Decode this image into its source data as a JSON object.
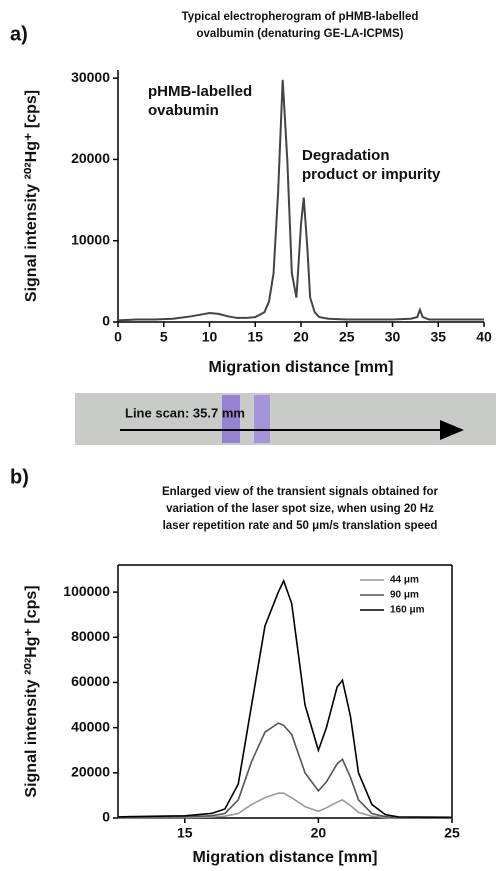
{
  "chart_data": [
    {
      "type": "line",
      "panel": "a)",
      "title": [
        "Typical electropherogram of pHMB-labelled",
        "ovalbumin (denaturing GE-LA-ICPMS)"
      ],
      "xlabel": "Migration distance [mm]",
      "ylabel": "Signal intensity ²⁰²Hg⁺ [cps]",
      "annotations": [
        [
          "pHMB-labelled",
          "ovabumin"
        ],
        [
          "Degradation",
          "product or impurity"
        ]
      ],
      "x": [
        0,
        2,
        4,
        6,
        8,
        9,
        10,
        11,
        12,
        13,
        14,
        15,
        16,
        16.5,
        17,
        17.5,
        18,
        18.5,
        19,
        19.5,
        20,
        20.3,
        20.7,
        21,
        21.5,
        22,
        23,
        25,
        28,
        30,
        32,
        32.7,
        33,
        33.3,
        34,
        36,
        38,
        40
      ],
      "values": [
        200,
        300,
        300,
        400,
        700,
        900,
        1100,
        1000,
        700,
        500,
        500,
        600,
        1200,
        2500,
        6000,
        16000,
        29800,
        20000,
        6000,
        3000,
        12000,
        15300,
        9000,
        3000,
        1200,
        600,
        400,
        300,
        300,
        300,
        400,
        600,
        1500,
        600,
        300,
        300,
        300,
        300
      ],
      "color": "#444444",
      "xlim": [
        0,
        40
      ],
      "xticks": [
        0,
        5,
        10,
        15,
        20,
        25,
        30,
        35,
        40
      ],
      "ylim": [
        0,
        31000
      ],
      "yticks": [
        0,
        10000,
        20000,
        30000
      ],
      "box": false
    },
    {
      "type": "line",
      "panel": "b)",
      "title": [
        "Enlarged view of the transient signals obtained for",
        "variation of the laser spot size, when using 20 Hz",
        "laser repetition rate and 50 μm/s translation speed"
      ],
      "xlabel": "Migration distance [mm]",
      "ylabel": "Signal intensity ²⁰²Hg⁺ [cps]",
      "x": [
        12.5,
        14,
        15,
        16,
        16.5,
        17,
        17.5,
        18,
        18.5,
        18.7,
        19,
        19.5,
        20,
        20.3,
        20.7,
        20.9,
        21.2,
        21.5,
        22,
        22.5,
        23,
        25
      ],
      "series": [
        {
          "name": "44 μm",
          "color": "#999999",
          "values": [
            100,
            200,
            200,
            400,
            800,
            2000,
            6000,
            9000,
            11000,
            11000,
            9000,
            5000,
            3000,
            4500,
            7000,
            8000,
            5500,
            2500,
            800,
            200,
            100,
            0
          ]
        },
        {
          "name": "90 μm",
          "color": "#555555",
          "values": [
            300,
            500,
            600,
            1000,
            2000,
            8000,
            25000,
            38000,
            42000,
            41000,
            37000,
            20000,
            12000,
            16000,
            24000,
            26000,
            18000,
            8000,
            2000,
            600,
            200,
            100
          ]
        },
        {
          "name": "160 μm",
          "color": "#000000",
          "values": [
            500,
            800,
            1000,
            2000,
            4000,
            15000,
            50000,
            85000,
            100000,
            105000,
            95000,
            50000,
            30000,
            40000,
            58000,
            61000,
            45000,
            20000,
            6000,
            1500,
            500,
            300
          ]
        }
      ],
      "legend": "upper right",
      "xlim": [
        12.5,
        25
      ],
      "xticks": [
        15,
        20,
        25
      ],
      "ylim": [
        0,
        112000
      ],
      "yticks": [
        0,
        20000,
        40000,
        60000,
        80000,
        100000
      ],
      "box": true
    }
  ],
  "scan_label": "Line scan: 35.7 mm"
}
